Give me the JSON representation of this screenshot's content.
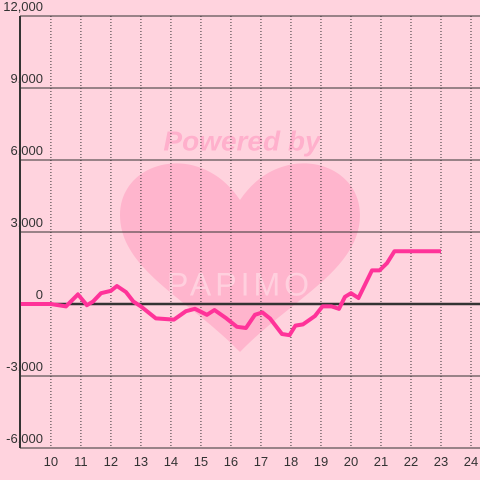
{
  "chart_data": {
    "type": "line",
    "watermark": [
      "Powered by",
      "PAPIMO"
    ],
    "x": [
      9,
      10,
      10.5,
      10.9,
      11.2,
      11.4,
      11.67,
      12,
      12.2,
      12.5,
      12.75,
      13,
      13.5,
      14.1,
      14.5,
      14.8,
      15.2,
      15.45,
      15.85,
      16.2,
      16.5,
      16.8,
      17.05,
      17.3,
      17.7,
      17.95,
      18.15,
      18.4,
      18.8,
      19.05,
      19.35,
      19.6,
      19.8,
      20,
      20.25,
      20.7,
      20.95,
      21.2,
      21.45,
      23
    ],
    "series": [
      {
        "color": "#ff3399",
        "values": [
          0,
          0,
          -100,
          400,
          -50,
          100,
          450,
          550,
          750,
          500,
          100,
          -100,
          -600,
          -650,
          -300,
          -200,
          -450,
          -250,
          -600,
          -950,
          -1000,
          -450,
          -350,
          -600,
          -1250,
          -1300,
          -900,
          -850,
          -500,
          -100,
          -100,
          -200,
          300,
          450,
          250,
          1400,
          1400,
          1700,
          2200,
          2200
        ]
      }
    ],
    "xlim": [
      8.97,
      24.3
    ],
    "xticks": [
      10,
      11,
      12,
      13,
      14,
      15,
      16,
      17,
      18,
      19,
      20,
      21,
      22,
      23,
      24
    ],
    "ylim": [
      -6000,
      12000
    ],
    "yticks": [
      {
        "value": -6000,
        "label": "-6,000"
      },
      {
        "value": -3000,
        "label": "-3,000"
      },
      0,
      {
        "value": 3000,
        "label": "3,000"
      },
      {
        "value": 6000,
        "label": "6,000"
      },
      {
        "value": 9000,
        "label": "9,000"
      },
      {
        "value": 12000,
        "label": "12,000"
      }
    ],
    "grid": true
  }
}
